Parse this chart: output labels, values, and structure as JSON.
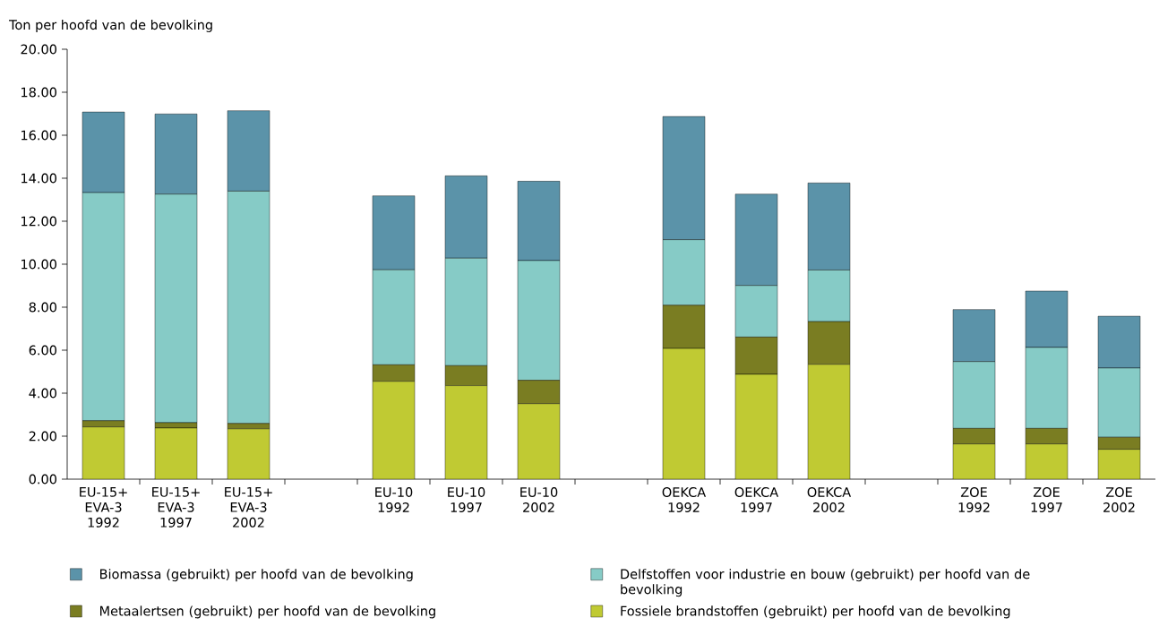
{
  "chart_data": {
    "type": "bar",
    "stacked": true,
    "ylabel": "Ton per hoofd van de bevolking",
    "categories": [
      "EU-15+ EVA-3 1992",
      "EU-15+ EVA-3 1997",
      "EU-15+ EVA-3 2002",
      null,
      "EU-10 1992",
      "EU-10 1997",
      "EU-10 2002",
      null,
      "OEKCA 1992",
      "OEKCA 1997",
      "OEKCA 2002",
      null,
      "ZOE 1992",
      "ZOE 1997",
      "ZOE 2002"
    ],
    "series": [
      {
        "name": "Fossiele brandstoffen (gebruikt) per hoofd van de bevolking",
        "color": "#c0ca33",
        "values": [
          2.43,
          2.38,
          2.34,
          null,
          4.55,
          4.35,
          3.51,
          null,
          6.08,
          4.88,
          5.34,
          null,
          1.64,
          1.64,
          1.39
        ]
      },
      {
        "name": "Metaalertsen (gebruikt) per hoofd van de bevolking",
        "color": "#7a7d22",
        "values": [
          0.29,
          0.25,
          0.25,
          null,
          0.77,
          0.93,
          1.09,
          null,
          2.01,
          1.73,
          1.99,
          null,
          0.72,
          0.72,
          0.56
        ]
      },
      {
        "name": "Delfstoffen voor industrie en bouw (gebruikt) per hoofd van de bevolking",
        "color": "#86cbc6",
        "values": [
          10.61,
          10.63,
          10.81,
          null,
          4.42,
          5.0,
          5.57,
          null,
          3.05,
          2.4,
          2.4,
          null,
          3.11,
          3.77,
          3.22
        ]
      },
      {
        "name": "Biomassa (gebruikt) per hoofd van de bevolking",
        "color": "#5b93a9",
        "values": [
          3.75,
          3.73,
          3.74,
          null,
          3.44,
          3.83,
          3.69,
          null,
          5.73,
          4.25,
          4.05,
          null,
          2.42,
          2.62,
          2.41
        ]
      }
    ],
    "ylim": [
      0,
      20
    ],
    "yticks": [
      {
        "value": 0,
        "label": "0.00"
      },
      {
        "value": 2,
        "label": "2.00"
      },
      {
        "value": 4,
        "label": "4.00"
      },
      {
        "value": 6,
        "label": "6.00"
      },
      {
        "value": 8,
        "label": "8.00"
      },
      {
        "value": 10,
        "label": "10.00"
      },
      {
        "value": 12,
        "label": "12.00"
      },
      {
        "value": 14,
        "label": "14.00"
      },
      {
        "value": 16,
        "label": "16.00"
      },
      {
        "value": 18,
        "label": "18.00"
      },
      {
        "value": 20,
        "label": "20.00"
      }
    ],
    "legend": "bottom",
    "grid": false
  }
}
